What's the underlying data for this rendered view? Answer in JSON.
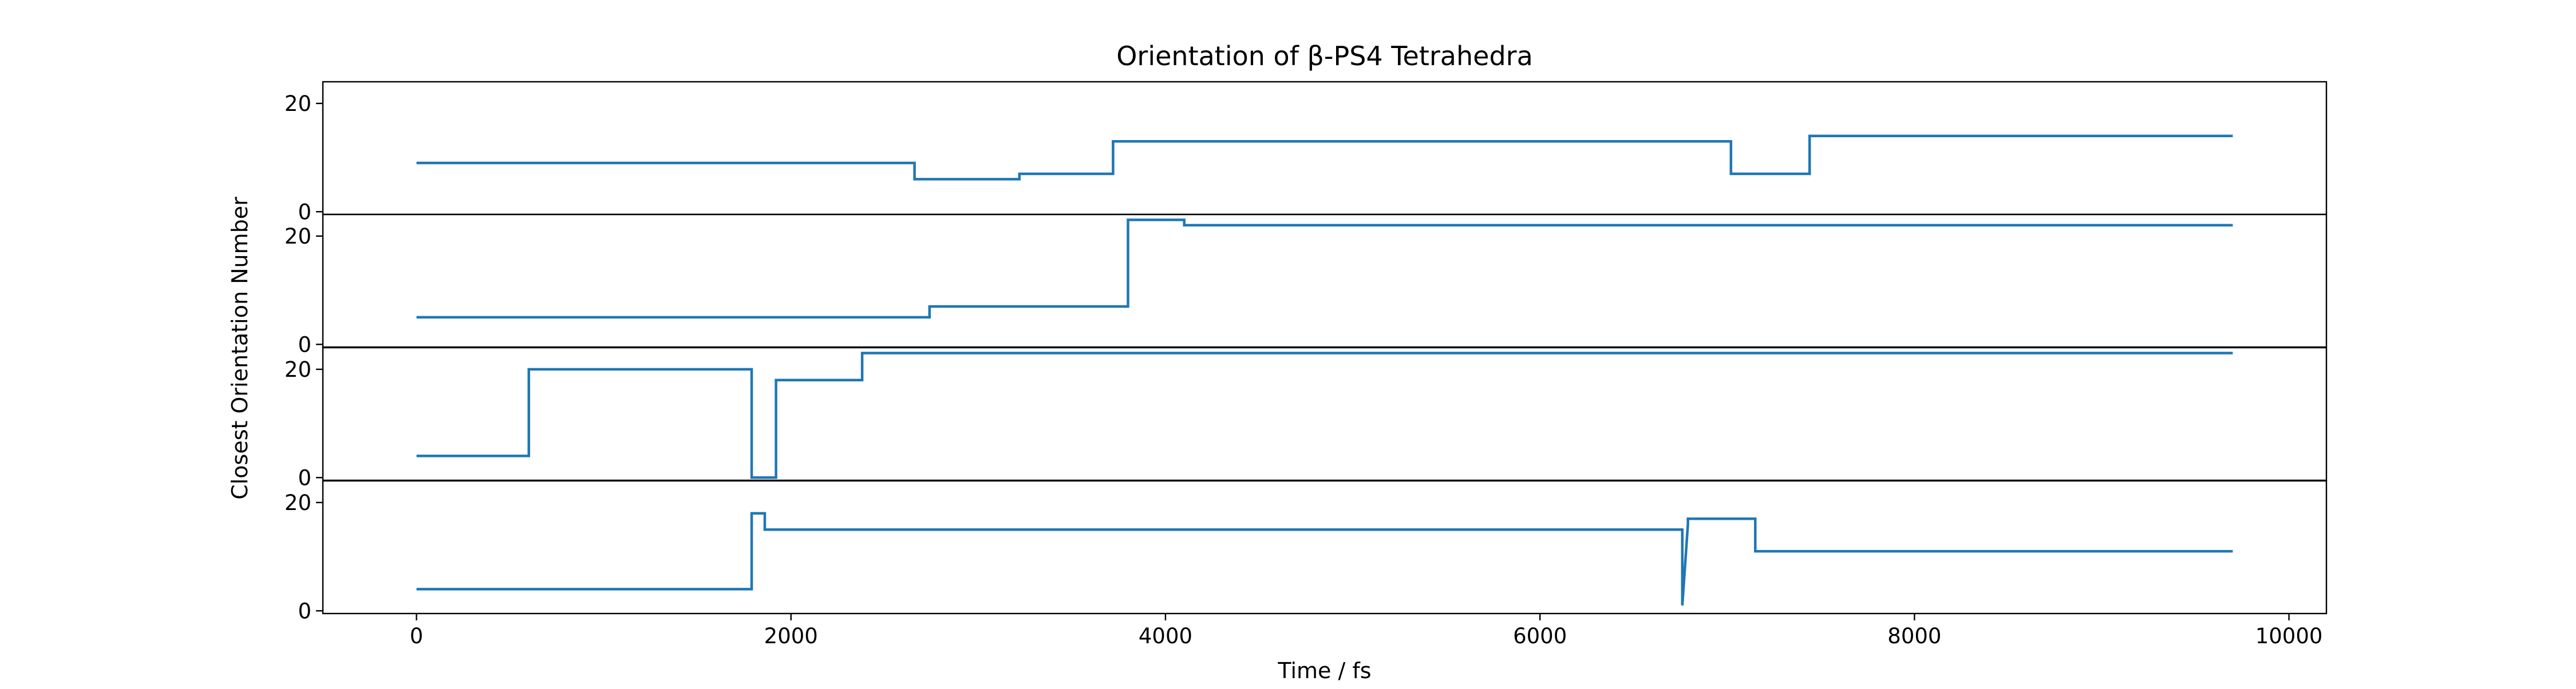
{
  "chart_data": {
    "type": "line",
    "title": "Orientation of β-PS4 Tetrahedra",
    "xlabel": "Time / fs",
    "ylabel": "Closest Orientation Number",
    "xlim": [
      -500,
      10200
    ],
    "xticks": [
      "0",
      "2000",
      "4000",
      "6000",
      "8000",
      "10000"
    ],
    "xtick_values": [
      0,
      2000,
      4000,
      6000,
      8000,
      10000
    ],
    "ylim": [
      -0.5,
      24
    ],
    "yticks": [
      "0",
      "20"
    ],
    "ytick_values": [
      0,
      20
    ],
    "grid": false,
    "line_color": "#1f77b4",
    "style": "step",
    "panels": [
      {
        "x": [
          0,
          2660,
          2660,
          3220,
          3220,
          3720,
          3720,
          7020,
          7020,
          7440,
          7440,
          9700
        ],
        "y": [
          9,
          9,
          6,
          6,
          7,
          7,
          13,
          13,
          7,
          7,
          14,
          14
        ]
      },
      {
        "x": [
          0,
          2740,
          2740,
          3800,
          3800,
          4100,
          4100,
          9700
        ],
        "y": [
          5,
          5,
          7,
          7,
          23,
          23,
          22,
          22
        ]
      },
      {
        "x": [
          0,
          600,
          600,
          1790,
          1790,
          1920,
          1920,
          2380,
          2380,
          9700
        ],
        "y": [
          4,
          4,
          20,
          20,
          0,
          0,
          18,
          18,
          23,
          23
        ]
      },
      {
        "x": [
          0,
          1790,
          1790,
          1860,
          1860,
          6760,
          6760,
          6790,
          6790,
          7150,
          7150,
          9700
        ],
        "y": [
          4,
          4,
          18,
          18,
          15,
          15,
          1,
          16,
          17,
          17,
          11,
          11
        ]
      }
    ]
  }
}
